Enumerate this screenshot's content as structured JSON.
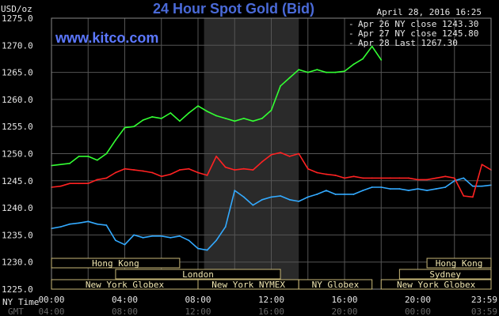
{
  "title": "24 Hour Spot Gold (Bid)",
  "website": "www.kitco.com",
  "timestamp": "April 28, 2016 16:25",
  "ylabel": "USD/oz",
  "xlabel_ny": "NY Time",
  "xlabel_gmt": "GMT",
  "legend": [
    {
      "text": "Apr 26 NY close 1243.30",
      "color": "#33aaff"
    },
    {
      "text": "Apr 27 NY close 1245.80",
      "color": "#ff2222"
    },
    {
      "text": "Apr 28 Last 1267.30",
      "color": "#33ff33"
    }
  ],
  "sessions": [
    {
      "label": "Hong Kong",
      "row": 0,
      "start": 0.0,
      "end": 7.0
    },
    {
      "label": "Hong Kong",
      "row": 0,
      "start": 20.5,
      "end": 24.0
    },
    {
      "label": "London",
      "row": 1,
      "start": 3.5,
      "end": 12.5
    },
    {
      "label": "Sydney",
      "row": 1,
      "start": 19.0,
      "end": 24.0
    },
    {
      "label": "New York Globex",
      "row": 2,
      "start": 0.0,
      "end": 8.0
    },
    {
      "label": "New York NYMEX",
      "row": 2,
      "start": 8.0,
      "end": 13.5
    },
    {
      "label": "NY Globex",
      "row": 2,
      "start": 13.5,
      "end": 17.5
    },
    {
      "label": "New York Globex",
      "row": 2,
      "start": 18.0,
      "end": 24.0
    }
  ],
  "chart_data": {
    "type": "line",
    "title": "24 Hour Spot Gold (Bid)",
    "ylabel": "USD/oz",
    "ylim": [
      1225,
      1275
    ],
    "xlim": [
      0,
      24
    ],
    "yticks": [
      "1225.0",
      "1230.0",
      "1235.0",
      "1240.0",
      "1245.0",
      "1250.0",
      "1255.0",
      "1260.0",
      "1265.0",
      "1270.0",
      "1275.0"
    ],
    "xticks_ny": [
      "00:00",
      "04:00",
      "08:00",
      "12:00",
      "16:00",
      "20:00",
      "23:59"
    ],
    "xticks_gmt": [
      "04:00",
      "08:00",
      "12:00",
      "16:00",
      "20:00",
      "00:00",
      "03:59"
    ],
    "grid": true,
    "legend_position": "top-right",
    "shaded_region": [
      8.33,
      13.5
    ],
    "x": [
      0,
      0.5,
      1,
      1.5,
      2,
      2.5,
      3,
      3.5,
      4,
      4.5,
      5,
      5.5,
      6,
      6.5,
      7,
      7.5,
      8,
      8.5,
      9,
      9.5,
      10,
      10.5,
      11,
      11.5,
      12,
      12.5,
      13,
      13.5,
      14,
      14.5,
      15,
      15.5,
      16,
      16.5,
      17,
      17.5,
      18,
      18.5,
      19,
      19.5,
      20,
      20.5,
      21,
      21.5,
      22,
      22.5,
      23,
      23.5,
      24
    ],
    "series": [
      {
        "name": "Apr 26 NY close 1243.30",
        "color": "#33aaff",
        "values": [
          1236.2,
          1236.5,
          1237.0,
          1237.2,
          1237.5,
          1237.0,
          1236.8,
          1234.0,
          1233.2,
          1235.0,
          1234.5,
          1234.8,
          1234.8,
          1234.5,
          1234.8,
          1234.0,
          1232.5,
          1232.2,
          1234.0,
          1236.5,
          1243.2,
          1242.0,
          1240.5,
          1241.5,
          1242.0,
          1242.2,
          1241.5,
          1241.2,
          1242.0,
          1242.5,
          1243.2,
          1242.5,
          1242.5,
          1242.5,
          1243.2,
          1243.8,
          1243.8,
          1243.5,
          1243.5,
          1243.2,
          1243.5,
          1243.2,
          1243.5,
          1243.8,
          1245.0,
          1245.5,
          1244.0,
          1244.0,
          1244.2
        ]
      },
      {
        "name": "Apr 27 NY close 1245.80",
        "color": "#ff2222",
        "values": [
          1243.8,
          1244.0,
          1244.5,
          1244.5,
          1244.5,
          1245.2,
          1245.5,
          1246.5,
          1247.2,
          1247.0,
          1246.8,
          1246.5,
          1245.8,
          1246.2,
          1247.0,
          1247.2,
          1246.5,
          1246.0,
          1249.5,
          1247.5,
          1247.0,
          1247.2,
          1247.0,
          1248.5,
          1249.8,
          1250.2,
          1249.5,
          1250.0,
          1247.2,
          1246.5,
          1246.2,
          1246.0,
          1245.5,
          1245.8,
          1245.5,
          1245.5,
          1245.5,
          1245.5,
          1245.5,
          1245.5,
          1245.2,
          1245.2,
          1245.5,
          1245.8,
          1245.5,
          1242.2,
          1242.0,
          1248.0,
          1247.0
        ]
      },
      {
        "name": "Apr 28 Last 1267.30",
        "color": "#33ff33",
        "values": [
          1247.8,
          1248.0,
          1248.2,
          1249.5,
          1249.5,
          1248.8,
          1250.0,
          1252.5,
          1254.8,
          1255.0,
          1256.2,
          1256.8,
          1256.5,
          1257.5,
          1256.0,
          1257.5,
          1258.8,
          1257.8,
          1257.0,
          1256.5,
          1256.0,
          1256.5,
          1256.0,
          1256.5,
          1258.0,
          1262.5,
          1264.0,
          1265.5,
          1265.0,
          1265.5,
          1265.0,
          1265.0,
          1265.2,
          1266.5,
          1267.5,
          1269.8,
          1267.3,
          null,
          null,
          null,
          null,
          null,
          null,
          null,
          null,
          null,
          null,
          null,
          null
        ]
      }
    ]
  }
}
